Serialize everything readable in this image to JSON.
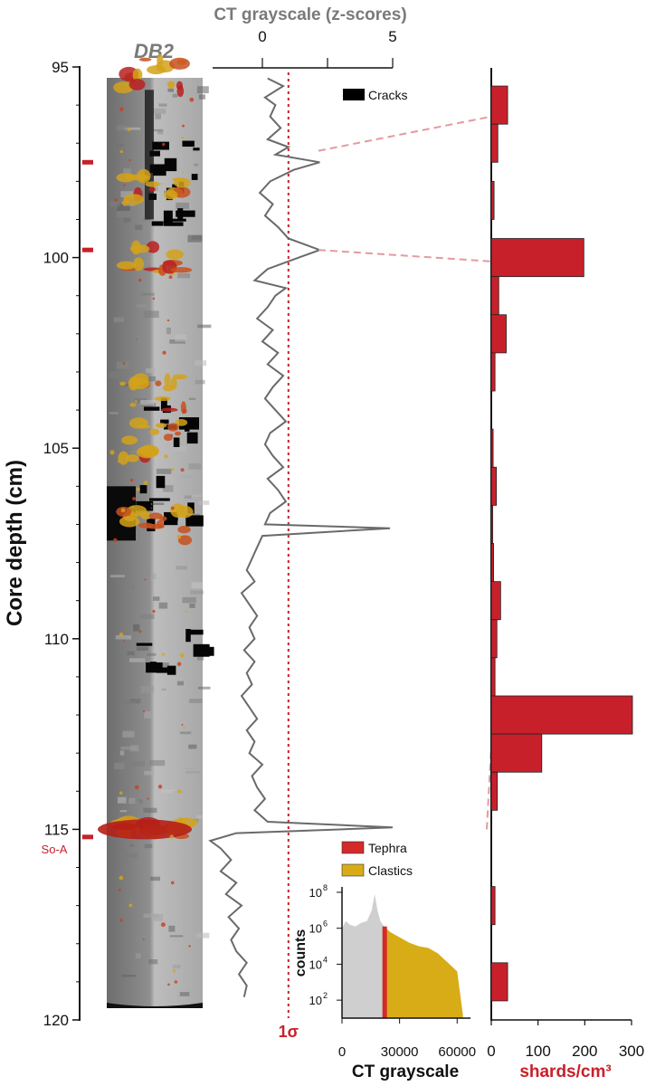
{
  "chart_data": {
    "type": "composite",
    "y_axis": {
      "label": "Core depth (cm)",
      "range": [
        95,
        120
      ],
      "ticks": [
        95,
        100,
        105,
        110,
        115,
        120
      ],
      "tick_labels": [
        "95",
        "100",
        "105",
        "110",
        "115",
        "120"
      ],
      "red_marks": [
        97.5,
        99.8,
        115.2
      ],
      "marker_label": "So-A"
    },
    "core_image": {
      "title": "DB2",
      "tephra_depths_cm": [
        95.2,
        98.2,
        100.1,
        103.6,
        104.8,
        107.0,
        115.0
      ],
      "crack_depths_cm": [
        97.5,
        98.5,
        104.2,
        106.3,
        110.3
      ]
    },
    "ct_curve": {
      "title": "CT grayscale (z-scores)",
      "xlim": [
        -2,
        5
      ],
      "ticks": [
        0,
        2.5,
        5
      ],
      "tick_labels": [
        "0",
        "5"
      ],
      "threshold": 1,
      "threshold_label": "1σ",
      "depth": [
        95.3,
        95.5,
        95.8,
        96.0,
        96.3,
        96.6,
        96.9,
        97.1,
        97.3,
        97.5,
        97.7,
        98.0,
        98.3,
        98.6,
        98.9,
        99.2,
        99.5,
        99.8,
        100.0,
        100.3,
        100.6,
        100.8,
        101.0,
        101.3,
        101.6,
        101.9,
        102.2,
        102.5,
        102.8,
        103.1,
        103.4,
        103.7,
        104.0,
        104.3,
        104.6,
        104.9,
        105.2,
        105.5,
        105.8,
        106.1,
        106.4,
        106.7,
        107.0,
        107.1,
        107.3,
        107.6,
        107.9,
        108.2,
        108.5,
        108.8,
        109.1,
        109.4,
        109.7,
        110.0,
        110.3,
        110.6,
        110.9,
        111.2,
        111.5,
        111.8,
        112.1,
        112.4,
        112.7,
        113.0,
        113.3,
        113.6,
        113.9,
        114.2,
        114.5,
        114.8,
        114.95,
        115.1,
        115.3,
        115.5,
        115.8,
        116.1,
        116.4,
        116.7,
        117.0,
        117.3,
        117.6,
        117.9,
        118.2,
        118.5,
        118.8,
        119.1,
        119.4
      ],
      "z": [
        0.2,
        0.8,
        0.1,
        0.5,
        0.3,
        0.7,
        0.2,
        1.0,
        0.5,
        2.2,
        1.2,
        0.3,
        -0.1,
        0.4,
        0.1,
        0.6,
        1.0,
        2.2,
        1.4,
        0.2,
        -0.3,
        0.9,
        0.5,
        0.2,
        -0.2,
        0.4,
        0.0,
        0.6,
        0.2,
        0.8,
        0.4,
        0.1,
        0.5,
        0.9,
        0.3,
        0.1,
        0.4,
        0.8,
        0.2,
        0.6,
        0.9,
        0.3,
        0.1,
        4.9,
        0.0,
        -0.2,
        -0.4,
        -0.6,
        -0.3,
        -0.8,
        -0.5,
        -0.2,
        -0.5,
        -0.3,
        -0.7,
        -0.3,
        -0.6,
        -0.4,
        -0.8,
        -0.5,
        -0.2,
        -0.6,
        -0.3,
        -0.5,
        0.0,
        -0.4,
        -0.2,
        0.1,
        -0.3,
        0.2,
        5.0,
        -1.0,
        -2.0,
        -1.6,
        -1.2,
        -1.6,
        -1.0,
        -1.4,
        -0.8,
        -1.3,
        -0.9,
        -1.2,
        -1.0,
        -0.6,
        -0.9,
        -0.6,
        -0.7
      ],
      "legend": "Cracks"
    },
    "shards": {
      "xlabel": "shards/cm³",
      "xlim": [
        0,
        300
      ],
      "ticks": [
        0,
        100,
        200,
        300
      ],
      "tick_labels": [
        "0",
        "100",
        "200",
        "300"
      ],
      "bins": [
        {
          "top": 95.5,
          "bottom": 96.5,
          "value": 35
        },
        {
          "top": 96.5,
          "bottom": 97.5,
          "value": 14
        },
        {
          "top": 98.0,
          "bottom": 99.0,
          "value": 6
        },
        {
          "top": 99.5,
          "bottom": 100.5,
          "value": 198
        },
        {
          "top": 100.5,
          "bottom": 101.5,
          "value": 16
        },
        {
          "top": 101.5,
          "bottom": 102.5,
          "value": 32
        },
        {
          "top": 102.5,
          "bottom": 103.5,
          "value": 8
        },
        {
          "top": 104.5,
          "bottom": 105.5,
          "value": 4
        },
        {
          "top": 105.5,
          "bottom": 106.5,
          "value": 11
        },
        {
          "top": 106.5,
          "bottom": 107.5,
          "value": 3
        },
        {
          "top": 107.5,
          "bottom": 108.5,
          "value": 5
        },
        {
          "top": 108.5,
          "bottom": 109.5,
          "value": 20
        },
        {
          "top": 109.5,
          "bottom": 110.5,
          "value": 12
        },
        {
          "top": 110.5,
          "bottom": 111.5,
          "value": 8
        },
        {
          "top": 111.5,
          "bottom": 112.5,
          "value": 302
        },
        {
          "top": 112.5,
          "bottom": 113.5,
          "value": 108
        },
        {
          "top": 113.5,
          "bottom": 114.5,
          "value": 13
        },
        {
          "top": 116.5,
          "bottom": 117.5,
          "value": 8
        },
        {
          "top": 118.5,
          "bottom": 119.5,
          "value": 35
        }
      ]
    },
    "histogram": {
      "xlabel": "CT grayscale",
      "ylabel": "counts",
      "xlim": [
        0,
        66000
      ],
      "x_ticks": [
        0,
        30000,
        60000
      ],
      "x_tick_labels": [
        "0",
        "30000",
        "60000"
      ],
      "y_log_ticks": [
        2,
        4,
        6,
        8
      ],
      "y_tick_labels": [
        "10",
        "10",
        "10",
        "10"
      ],
      "y_tick_exponents": [
        "2",
        "4",
        "6",
        "8"
      ],
      "threshold": 22000,
      "curve_x": [
        0,
        2000,
        4000,
        7000,
        10000,
        13000,
        15500,
        17000,
        18500,
        20000,
        22000,
        25000,
        30000,
        35000,
        40000,
        45000,
        50000,
        53000,
        55000,
        58000,
        60000,
        62000,
        63000
      ],
      "curve_log_counts": [
        6.0,
        6.4,
        6.2,
        6.1,
        6.3,
        6.4,
        7.0,
        7.9,
        7.0,
        6.4,
        6.1,
        5.8,
        5.5,
        5.2,
        5.0,
        4.9,
        4.6,
        4.3,
        4.1,
        3.8,
        3.6,
        2.0,
        1.2
      ],
      "legend": [
        {
          "label": "Tephra",
          "color": "#d42a2a"
        },
        {
          "label": "Clastics",
          "color": "#d8ac16"
        }
      ]
    },
    "colors": {
      "tephra": "#c8202a",
      "clastics": "#d8ac16",
      "curve": "#6a6a6a",
      "cracks": "#000000",
      "gray_fill": "#cfcfcf",
      "label_gray": "#7a7a7a"
    }
  }
}
